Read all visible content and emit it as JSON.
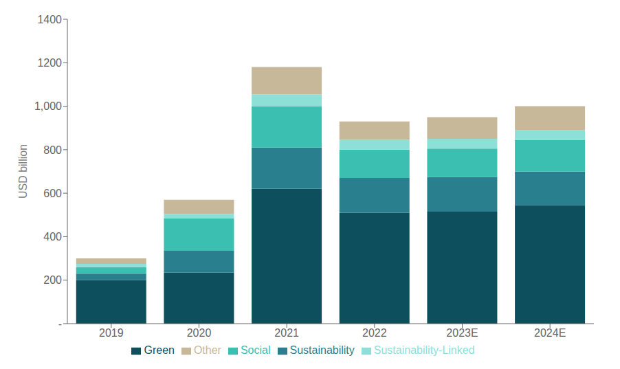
{
  "chart_data": {
    "type": "bar",
    "stacked": true,
    "categories": [
      "2019",
      "2020",
      "2021",
      "2022",
      "2023E",
      "2024E"
    ],
    "series": [
      {
        "name": "Green",
        "color": "#0d4f5c",
        "values": [
          200,
          235,
          620,
          510,
          515,
          545
        ]
      },
      {
        "name": "Sustainability",
        "color": "#2a7f8f",
        "values": [
          30,
          100,
          190,
          160,
          160,
          155
        ]
      },
      {
        "name": "Social",
        "color": "#3bbfb0",
        "values": [
          30,
          150,
          190,
          130,
          130,
          145
        ]
      },
      {
        "name": "Sustainability-Linked",
        "color": "#8de0d8",
        "values": [
          15,
          20,
          55,
          45,
          45,
          45
        ]
      },
      {
        "name": "Other",
        "color": "#c8b89a",
        "values": [
          25,
          65,
          125,
          85,
          100,
          110
        ]
      }
    ],
    "ylabel": "USD billion",
    "ylim": [
      0,
      1400
    ],
    "yticks": [
      {
        "value": 0,
        "label": "-"
      },
      200,
      400,
      600,
      800,
      {
        "value": 1000,
        "label": "1,000"
      },
      1200,
      1400
    ],
    "grid": false,
    "legend": "bottom"
  }
}
